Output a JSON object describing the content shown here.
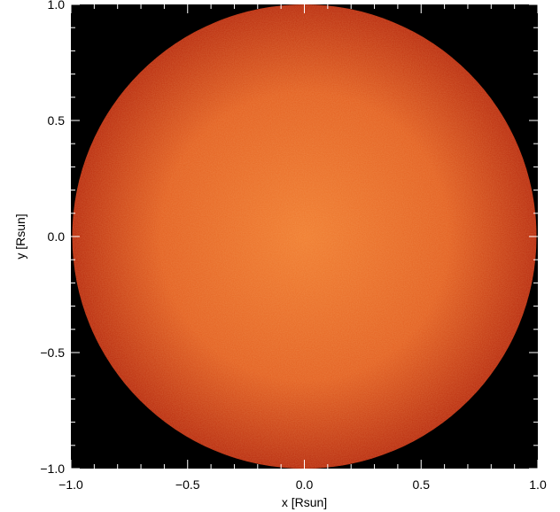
{
  "chart_data": {
    "type": "heatmap",
    "title": "",
    "xlabel": "x [Rsun]",
    "ylabel": "y [Rsun]",
    "xlim": [
      -1.0,
      1.0
    ],
    "ylim": [
      -1.0,
      1.0
    ],
    "x_ticks": [
      {
        "value": -1.0,
        "label": "−1.0"
      },
      {
        "value": -0.5,
        "label": "−0.5"
      },
      {
        "value": 0.0,
        "label": "0.0"
      },
      {
        "value": 0.5,
        "label": "0.5"
      },
      {
        "value": 1.0,
        "label": "1.0"
      }
    ],
    "y_ticks": [
      {
        "value": -1.0,
        "label": "−1.0"
      },
      {
        "value": -0.5,
        "label": "−0.5"
      },
      {
        "value": 0.0,
        "label": "0.0"
      },
      {
        "value": 0.5,
        "label": "0.5"
      },
      {
        "value": 1.0,
        "label": "1.0"
      }
    ],
    "disk": {
      "center": [
        0.0,
        0.0
      ],
      "radius": 1.0,
      "center_color": "#f07a2e",
      "limb_color": "#b8280c"
    },
    "background_color": "#000000",
    "grid": false,
    "legend": "none"
  }
}
